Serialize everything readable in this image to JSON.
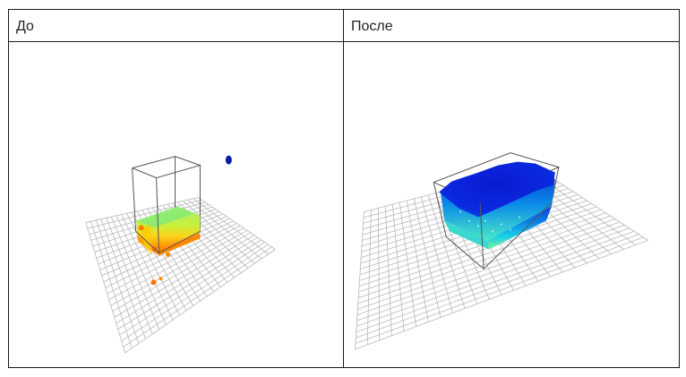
{
  "table": {
    "columns": [
      {
        "header": "До"
      },
      {
        "header": "После"
      }
    ]
  },
  "colors": {
    "grid_line": "#b8b8b8",
    "box_line": "#555555",
    "before_top": "#8ef37a",
    "before_side": "#a6ea5e",
    "before_bottom": "#ff8c00",
    "before_outlier": "#ff7a00",
    "before_blue_outlier": "#0a1fa8",
    "after_top": "#0a1fd6",
    "after_side_top": "#0a5fe0",
    "after_side_mid": "#18b8e8",
    "after_side_bottom": "#6ef0a8"
  }
}
